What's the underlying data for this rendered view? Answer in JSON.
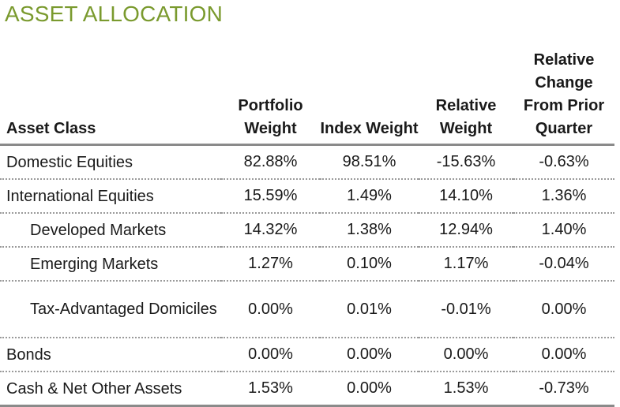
{
  "title": "ASSET ALLOCATION",
  "headers": {
    "asset_class": "Asset Class",
    "portfolio_weight": "Portfolio Weight",
    "index_weight": "Index Weight",
    "relative_weight": "Relative Weight",
    "relative_change": "Relative Change From Prior Quarter"
  },
  "rows": [
    {
      "name": "Domestic Equities",
      "portfolio": "82.88%",
      "index": "98.51%",
      "relative": "-15.63%",
      "change": "-0.63%"
    },
    {
      "name": "International Equities",
      "portfolio": "15.59%",
      "index": "1.49%",
      "relative": "14.10%",
      "change": "1.36%"
    },
    {
      "name": "Developed Markets",
      "portfolio": "14.32%",
      "index": "1.38%",
      "relative": "12.94%",
      "change": "1.40%"
    },
    {
      "name": "Emerging Markets",
      "portfolio": "1.27%",
      "index": "0.10%",
      "relative": "1.17%",
      "change": "-0.04%"
    },
    {
      "name": "Tax-Advantaged Domiciles",
      "portfolio": "0.00%",
      "index": "0.01%",
      "relative": "-0.01%",
      "change": "0.00%"
    },
    {
      "name": "Bonds",
      "portfolio": "0.00%",
      "index": "0.00%",
      "relative": "0.00%",
      "change": "0.00%"
    },
    {
      "name": "Cash & Net Other Assets",
      "portfolio": "1.53%",
      "index": "0.00%",
      "relative": "1.53%",
      "change": "-0.73%"
    }
  ]
}
